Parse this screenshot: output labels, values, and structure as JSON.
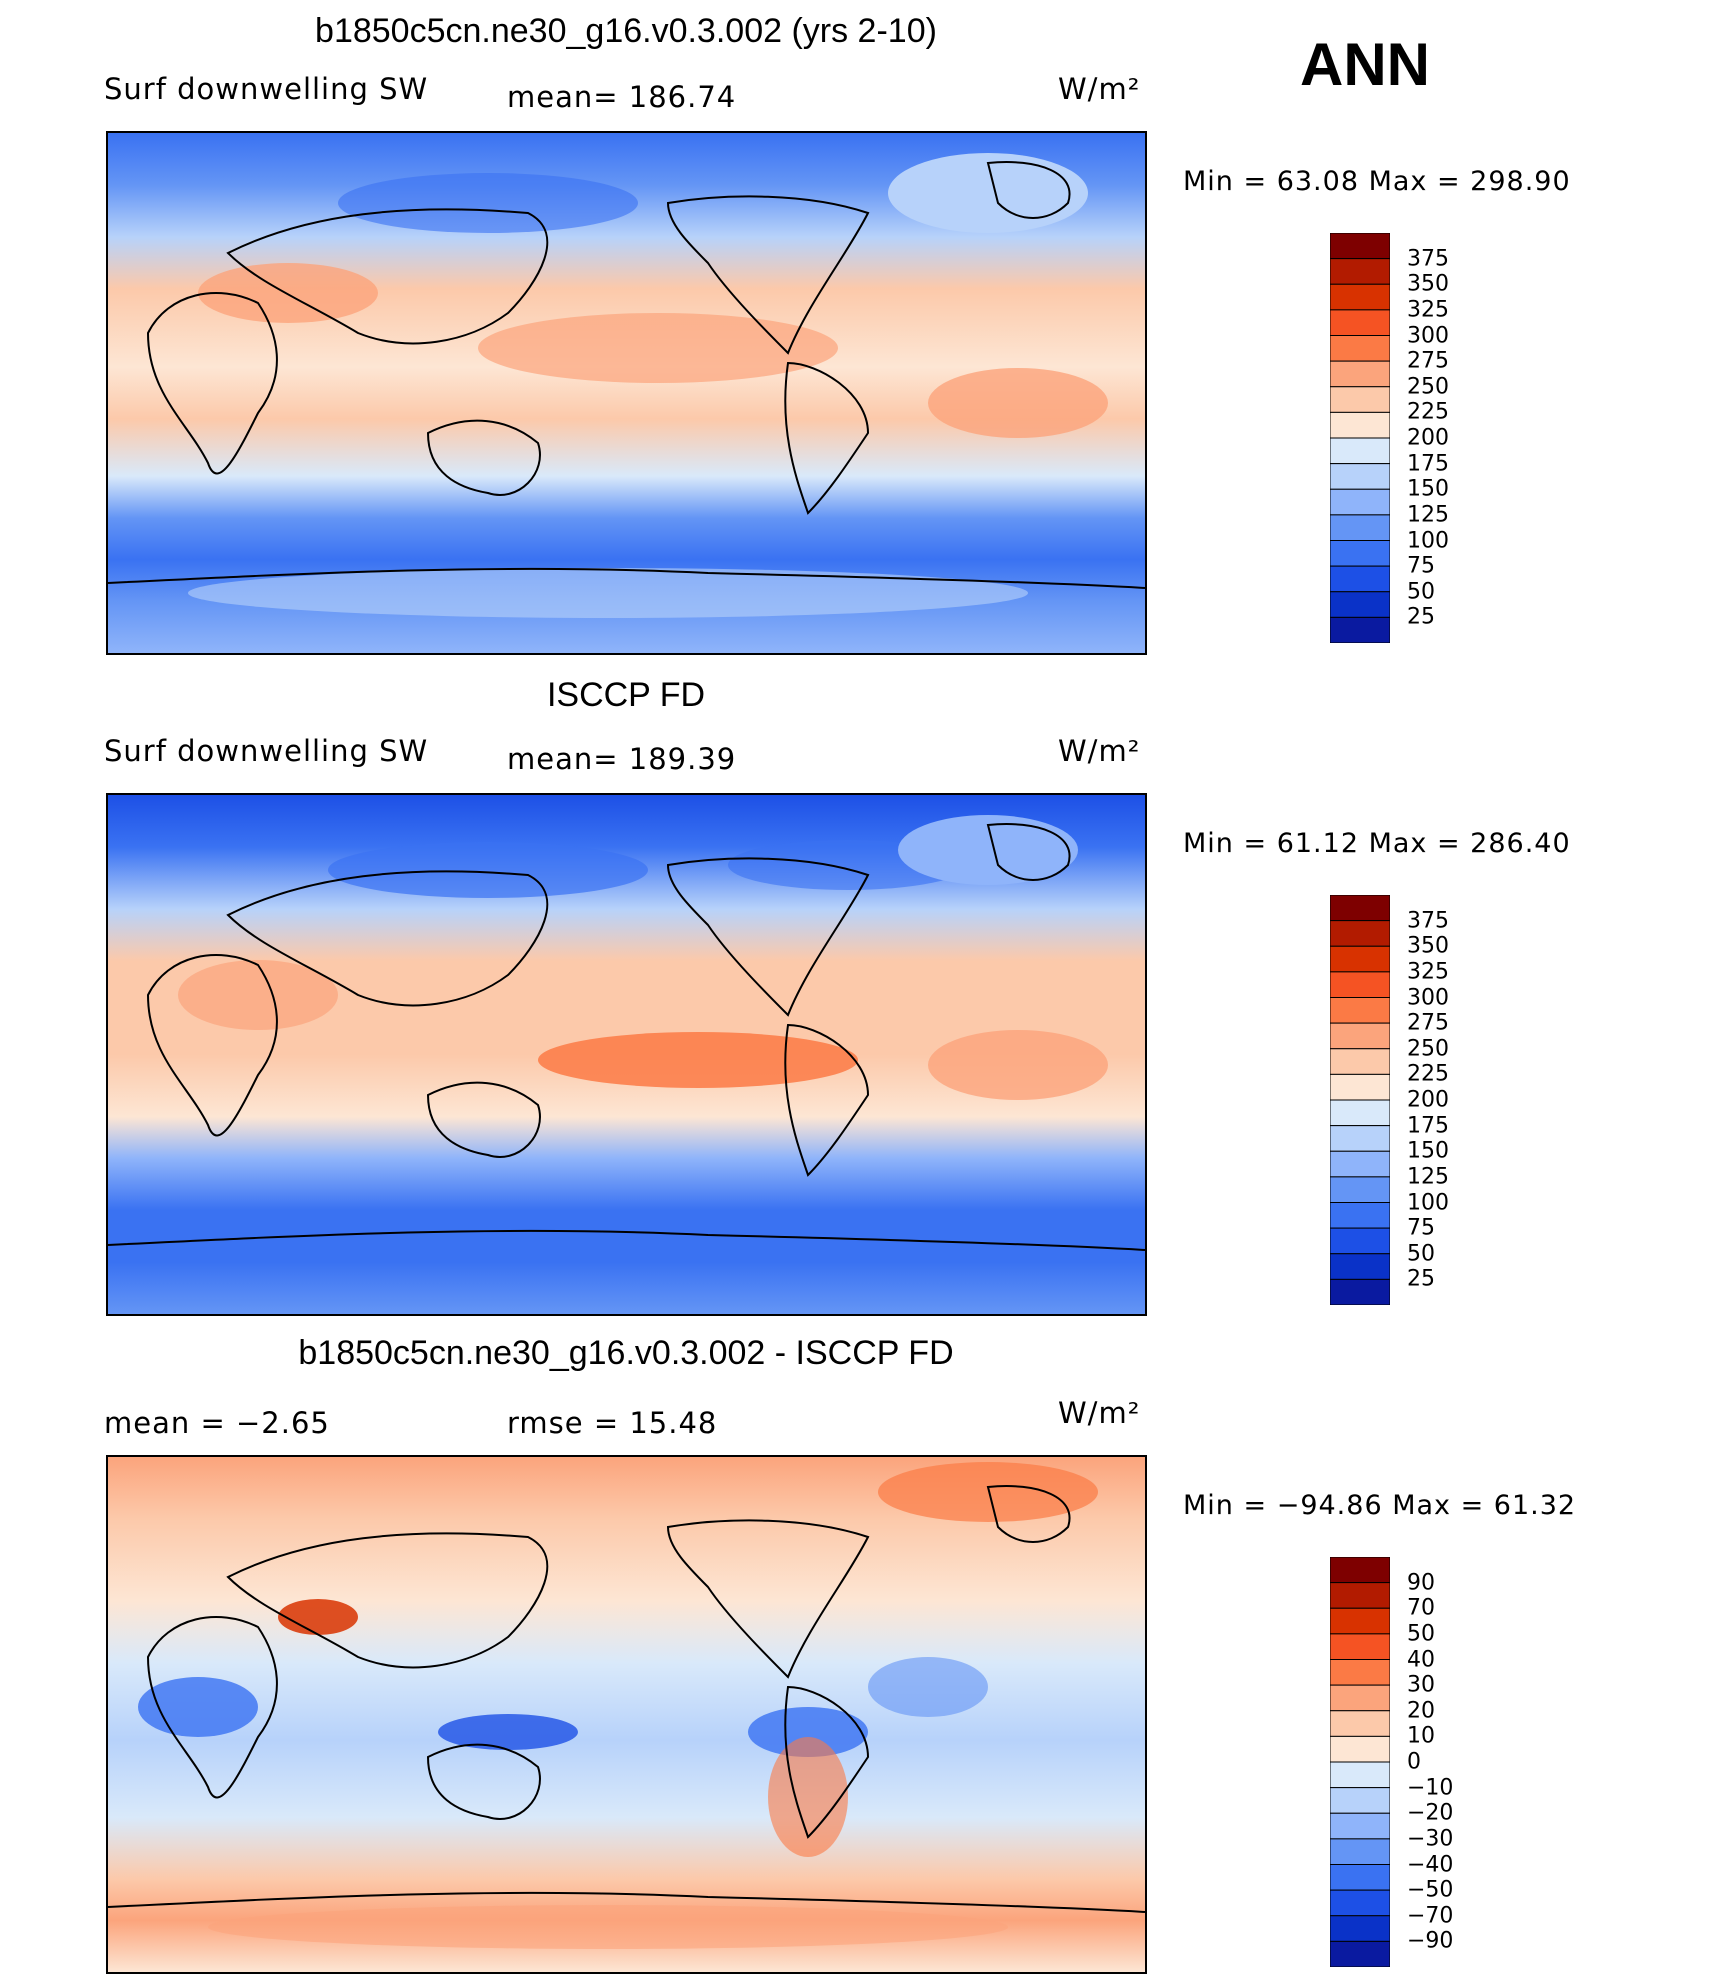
{
  "corner_label": "ANN",
  "panels": [
    {
      "title": "b1850c5cn.ne30_g16.v0.3.002 (yrs 2-10)",
      "left_label": "Surf downwelling SW",
      "center_label": "mean= 186.74",
      "units": "W/m²",
      "minmax": "Min =   63.08 Max = 298.90",
      "colorbar_ticks": [
        "375",
        "350",
        "325",
        "300",
        "275",
        "250",
        "225",
        "200",
        "175",
        "150",
        "125",
        "100",
        "75",
        "50",
        "25"
      ],
      "colors": [
        "#7e0000",
        "#b21b00",
        "#d83200",
        "#f55323",
        "#fb7a45",
        "#fba47c",
        "#fcc9aa",
        "#fde6d4",
        "#d9e9fa",
        "#b7d2fa",
        "#8fb4fa",
        "#6495f5",
        "#3a72f2",
        "#1d50e6",
        "#0a32c8",
        "#0a1aa0"
      ]
    },
    {
      "title": "ISCCP FD",
      "left_label": "Surf downwelling SW",
      "center_label": "mean= 189.39",
      "units": "W/m²",
      "minmax": "Min =   61.12 Max = 286.40",
      "colorbar_ticks": [
        "375",
        "350",
        "325",
        "300",
        "275",
        "250",
        "225",
        "200",
        "175",
        "150",
        "125",
        "100",
        "75",
        "50",
        "25"
      ],
      "colors": [
        "#7e0000",
        "#b21b00",
        "#d83200",
        "#f55323",
        "#fb7a45",
        "#fba47c",
        "#fcc9aa",
        "#fde6d4",
        "#d9e9fa",
        "#b7d2fa",
        "#8fb4fa",
        "#6495f5",
        "#3a72f2",
        "#1d50e6",
        "#0a32c8",
        "#0a1aa0"
      ]
    },
    {
      "title": "b1850c5cn.ne30_g16.v0.3.002 - ISCCP FD",
      "left_label": "mean =   −2.65",
      "center_label": "rmse =   15.48",
      "units": "W/m²",
      "minmax": "Min = −94.86 Max =   61.32",
      "colorbar_ticks": [
        "90",
        "70",
        "50",
        "40",
        "30",
        "20",
        "10",
        "0",
        "−10",
        "−20",
        "−30",
        "−40",
        "−50",
        "−70",
        "−90"
      ],
      "colors": [
        "#7e0000",
        "#b21b00",
        "#d83200",
        "#f55323",
        "#fb7a45",
        "#fba47c",
        "#fcc9aa",
        "#fde6d4",
        "#d9e9fa",
        "#b7d2fa",
        "#8fb4fa",
        "#6495f5",
        "#3a72f2",
        "#1d50e6",
        "#0a32c8",
        "#0a1aa0"
      ]
    }
  ]
}
